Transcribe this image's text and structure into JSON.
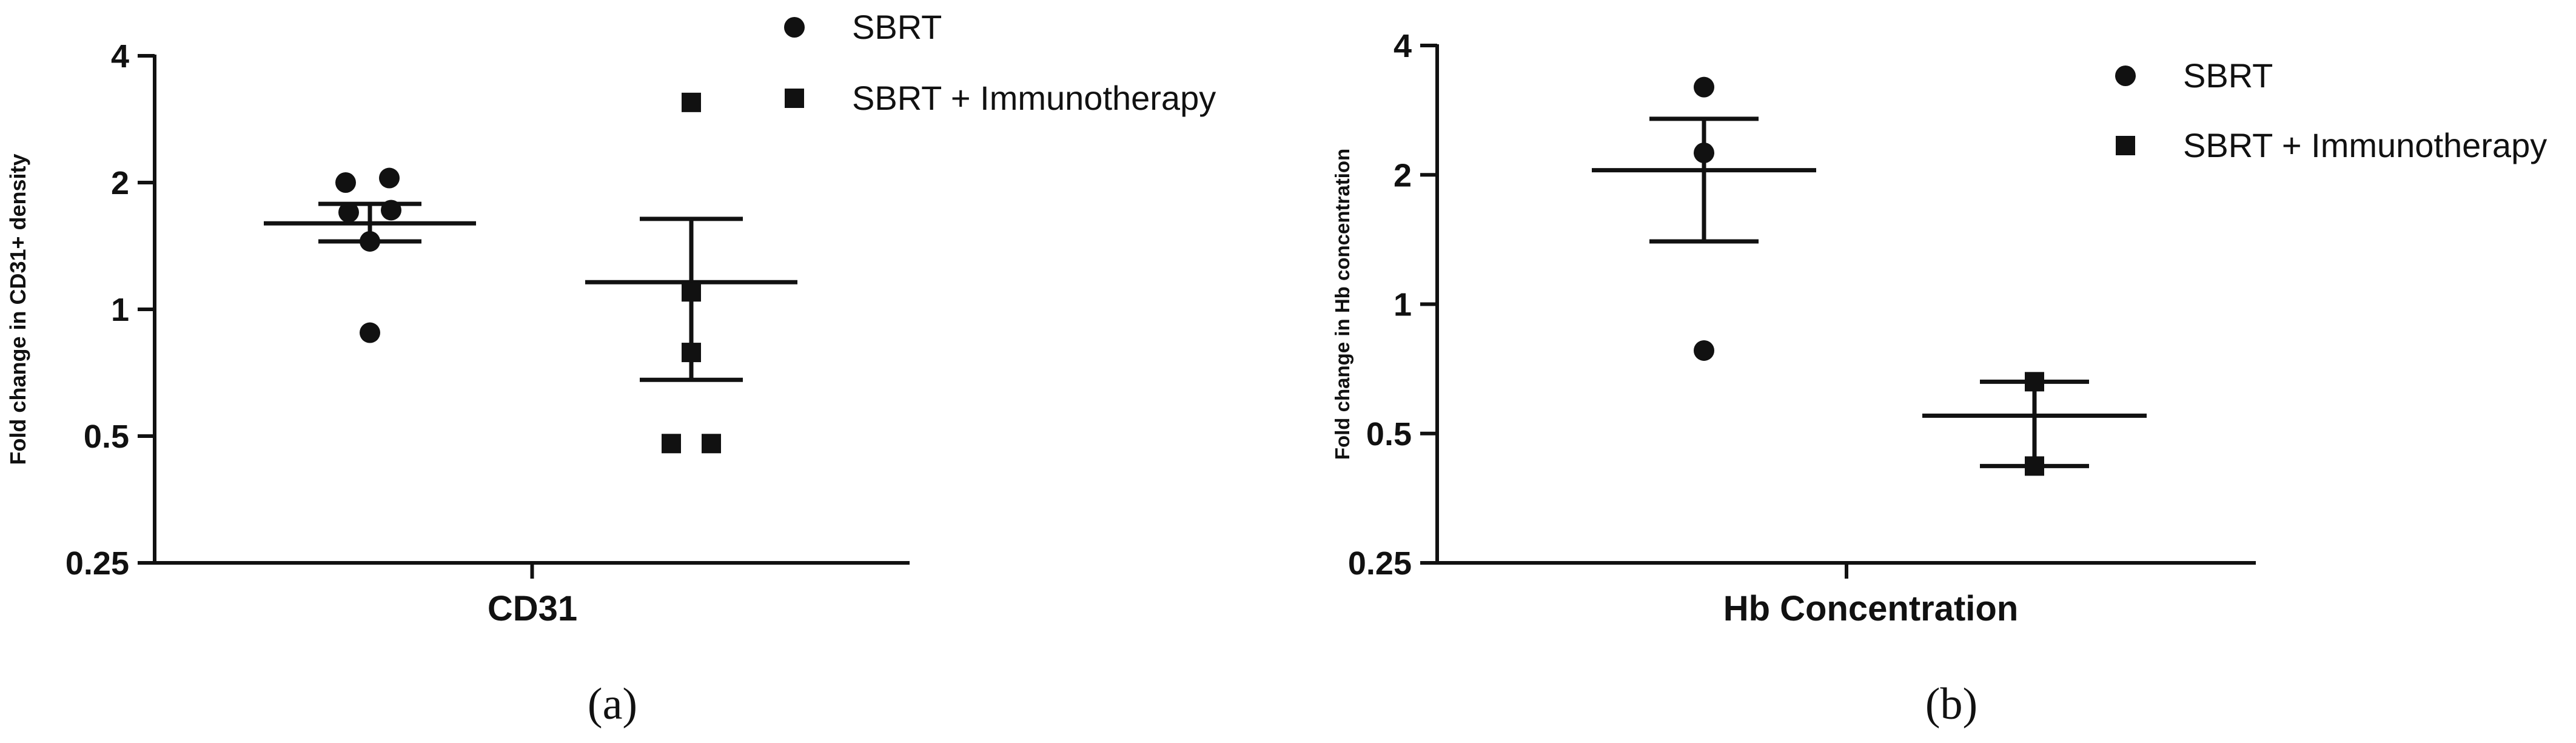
{
  "chart_data": [
    {
      "type": "scatter",
      "panel_label": "(a)",
      "xlabel": "CD31",
      "ylabel": "Fold change in CD31+ density",
      "yscale": "log2",
      "ylim": [
        0.25,
        4
      ],
      "yticks": [
        "0.25",
        "0.5",
        "1",
        "2",
        "4"
      ],
      "ytick_values": [
        0.25,
        0.5,
        1,
        2,
        4
      ],
      "legend": {
        "placement": "top-right",
        "entries": [
          "SBRT",
          "SBRT + Immunotherapy"
        ]
      },
      "series": [
        {
          "name": "SBRT",
          "marker": "circle",
          "values": [
            2.0,
            2.05,
            1.7,
            1.72,
            1.45,
            0.88
          ],
          "mean": 1.6,
          "sem_upper": 1.78,
          "sem_lower": 1.45
        },
        {
          "name": "SBRT + Immunotherapy",
          "marker": "square",
          "values": [
            3.1,
            1.1,
            0.79,
            0.48,
            0.48
          ],
          "mean": 1.16,
          "sem_upper": 1.64,
          "sem_lower": 0.68
        }
      ]
    },
    {
      "type": "scatter",
      "panel_label": "(b)",
      "xlabel": "Hb Concentration",
      "ylabel": "Fold change in Hb concentration",
      "yscale": "log2",
      "ylim": [
        0.25,
        4
      ],
      "yticks": [
        "0.25",
        "0.5",
        "1",
        "2",
        "4"
      ],
      "ytick_values": [
        0.25,
        0.5,
        1,
        2,
        4
      ],
      "legend": {
        "placement": "top-right",
        "entries": [
          "SBRT",
          "SBRT + Immunotherapy"
        ]
      },
      "series": [
        {
          "name": "SBRT",
          "marker": "circle",
          "values": [
            3.2,
            2.25,
            0.78
          ],
          "mean": 2.05,
          "sem_upper": 2.7,
          "sem_lower": 1.4
        },
        {
          "name": "SBRT + Immunotherapy",
          "marker": "square",
          "values": [
            0.66,
            0.42
          ],
          "mean": 0.55,
          "sem_upper": 0.66,
          "sem_lower": 0.42
        }
      ]
    }
  ]
}
